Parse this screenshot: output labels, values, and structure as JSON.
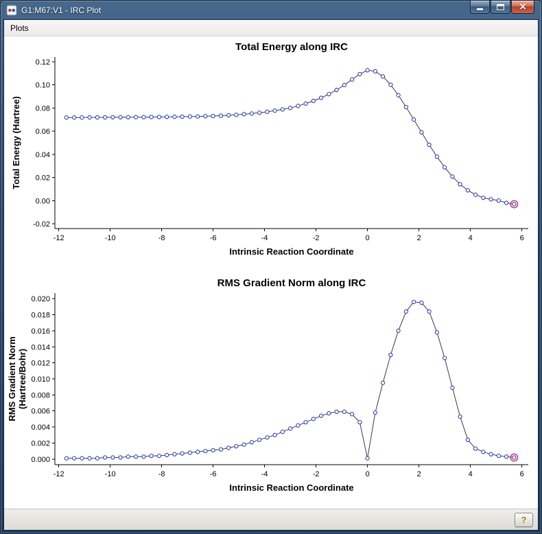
{
  "window": {
    "title": "G1:M67:V1 - IRC Plot"
  },
  "menu": {
    "items": [
      {
        "label": "Plots"
      }
    ]
  },
  "status": {
    "help_label": "?"
  },
  "colors": {
    "frame_blue": "#2b4a6e",
    "close_red": "#b8432a",
    "marker_blue": "#2f3fbe",
    "series_line": "#3a3a3a",
    "highlight_ring": "#cc2b66",
    "help_glyph_gold": "#a3870a"
  },
  "chart_data": [
    {
      "type": "line",
      "title": "Total Energy along IRC",
      "xlabel": "Intrinsic Reaction Coordinate",
      "ylabel_lines": [
        "Total Energy (Hartree)"
      ],
      "xlim": [
        -12.15,
        6.25
      ],
      "ylim": [
        -0.024,
        0.124
      ],
      "xticks": [
        -12,
        -10,
        -8,
        -6,
        -4,
        -2,
        0,
        2,
        4,
        6
      ],
      "yticks": [
        -0.02,
        0,
        0.02,
        0.04,
        0.06,
        0.08,
        0.1,
        0.12
      ],
      "ytick_labels": [
        "-0.02",
        "0.00",
        "0.02",
        "0.04",
        "0.06",
        "0.08",
        "0.10",
        "0.12"
      ],
      "grid": false,
      "legend": "none",
      "line_color": "#3a3a3a",
      "marker_color": "#2f3fbe",
      "highlight_last": true,
      "highlight_color": "#cc2b66",
      "x": [
        -11.7,
        -11.4,
        -11.1,
        -10.8,
        -10.5,
        -10.2,
        -9.9,
        -9.6,
        -9.3,
        -9.0,
        -8.7,
        -8.4,
        -8.1,
        -7.8,
        -7.5,
        -7.2,
        -6.9,
        -6.6,
        -6.3,
        -6.0,
        -5.7,
        -5.4,
        -5.1,
        -4.8,
        -4.5,
        -4.2,
        -3.9,
        -3.6,
        -3.3,
        -3.0,
        -2.7,
        -2.4,
        -2.1,
        -1.8,
        -1.5,
        -1.2,
        -0.9,
        -0.6,
        -0.3,
        0.0,
        0.3,
        0.6,
        0.9,
        1.2,
        1.5,
        1.8,
        2.1,
        2.4,
        2.7,
        3.0,
        3.3,
        3.6,
        3.9,
        4.2,
        4.5,
        4.8,
        5.1,
        5.4,
        5.7
      ],
      "y": [
        0.0718,
        0.0718,
        0.0718,
        0.0719,
        0.0719,
        0.0719,
        0.072,
        0.072,
        0.072,
        0.0721,
        0.0721,
        0.0722,
        0.0722,
        0.0723,
        0.0724,
        0.0725,
        0.0726,
        0.0727,
        0.0729,
        0.0731,
        0.0734,
        0.0737,
        0.0741,
        0.0746,
        0.0752,
        0.0759,
        0.0767,
        0.0777,
        0.0788,
        0.08,
        0.0818,
        0.0838,
        0.0861,
        0.0888,
        0.092,
        0.0956,
        0.0998,
        0.1046,
        0.1092,
        0.1126,
        0.1116,
        0.1072,
        0.1,
        0.091,
        0.0808,
        0.07,
        0.059,
        0.0482,
        0.038,
        0.0288,
        0.0208,
        0.0142,
        0.009,
        0.0052,
        0.0026,
        0.0012,
        0.0002,
        -0.0018,
        -0.003
      ]
    },
    {
      "type": "line",
      "title": "RMS Gradient Norm along IRC",
      "xlabel": "Intrinsic Reaction Coordinate",
      "ylabel_lines": [
        "RMS Gradient Norm",
        "(Hartree/Bohr)"
      ],
      "xlim": [
        -12.15,
        6.25
      ],
      "ylim": [
        -0.0007,
        0.0207
      ],
      "xticks": [
        -12,
        -10,
        -8,
        -6,
        -4,
        -2,
        0,
        2,
        4,
        6
      ],
      "yticks": [
        0,
        0.002,
        0.004,
        0.006,
        0.008,
        0.01,
        0.012,
        0.014,
        0.016,
        0.018,
        0.02
      ],
      "ytick_labels": [
        "0.000",
        "0.002",
        "0.004",
        "0.006",
        "0.008",
        "0.010",
        "0.012",
        "0.014",
        "0.016",
        "0.018",
        "0.020"
      ],
      "grid": false,
      "legend": "none",
      "line_color": "#3a3a3a",
      "marker_color": "#2f3fbe",
      "highlight_last": true,
      "highlight_color": "#cc2b66",
      "x": [
        -11.7,
        -11.4,
        -11.1,
        -10.8,
        -10.5,
        -10.2,
        -9.9,
        -9.6,
        -9.3,
        -9.0,
        -8.7,
        -8.4,
        -8.1,
        -7.8,
        -7.5,
        -7.2,
        -6.9,
        -6.6,
        -6.3,
        -6.0,
        -5.7,
        -5.4,
        -5.1,
        -4.8,
        -4.5,
        -4.2,
        -3.9,
        -3.6,
        -3.3,
        -3.0,
        -2.7,
        -2.4,
        -2.1,
        -1.8,
        -1.5,
        -1.2,
        -0.9,
        -0.6,
        -0.3,
        0.0,
        0.3,
        0.6,
        0.9,
        1.2,
        1.5,
        1.8,
        2.1,
        2.4,
        2.7,
        3.0,
        3.3,
        3.6,
        3.9,
        4.2,
        4.5,
        4.8,
        5.1,
        5.4,
        5.7
      ],
      "y": [
        0.0001,
        0.0001,
        0.0001,
        0.0001,
        0.0001,
        0.0002,
        0.0002,
        0.0002,
        0.0003,
        0.0003,
        0.0003,
        0.0004,
        0.0004,
        0.0005,
        0.0006,
        0.0007,
        0.0008,
        0.0009,
        0.001,
        0.0011,
        0.0012,
        0.0014,
        0.0016,
        0.0018,
        0.0021,
        0.0024,
        0.0027,
        0.003,
        0.0034,
        0.0038,
        0.0042,
        0.0046,
        0.005,
        0.0054,
        0.0057,
        0.0059,
        0.0059,
        0.0056,
        0.0046,
        0.0001,
        0.0058,
        0.0095,
        0.013,
        0.016,
        0.0184,
        0.0196,
        0.0195,
        0.0184,
        0.0158,
        0.0126,
        0.0089,
        0.0053,
        0.0024,
        0.0013,
        0.0009,
        0.0006,
        0.0004,
        0.0003,
        0.0002
      ]
    }
  ]
}
